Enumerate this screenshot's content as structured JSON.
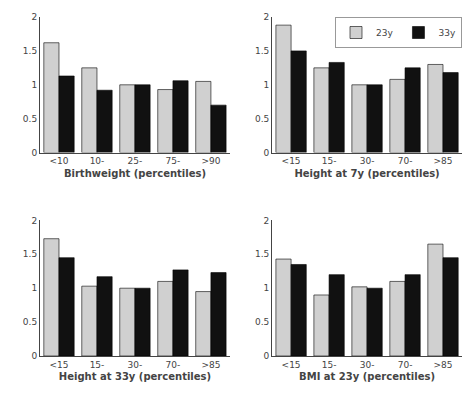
{
  "chart_data": [
    {
      "type": "bar",
      "xlabel": "Birthweight (percentiles)",
      "categories": [
        "<10",
        "10-",
        "25-",
        "75-",
        ">90"
      ],
      "series": [
        {
          "name": "23y",
          "color": "#d0d0d0",
          "values": [
            1.62,
            1.25,
            1.0,
            0.93,
            1.05
          ]
        },
        {
          "name": "33y",
          "color": "#111111",
          "values": [
            1.13,
            0.92,
            1.0,
            1.06,
            0.7
          ]
        }
      ],
      "ylim": [
        0,
        2
      ],
      "yticks": [
        0,
        0.5,
        1,
        1.5,
        2
      ],
      "grid": false
    },
    {
      "type": "bar",
      "xlabel": "Height at 7y (percentiles)",
      "categories": [
        "<15",
        "15-",
        "30-",
        "70-",
        ">85"
      ],
      "series": [
        {
          "name": "23y",
          "color": "#d0d0d0",
          "values": [
            1.88,
            1.25,
            1.0,
            1.08,
            1.3
          ]
        },
        {
          "name": "33y",
          "color": "#111111",
          "values": [
            1.5,
            1.33,
            1.0,
            1.25,
            1.18
          ]
        }
      ],
      "ylim": [
        0,
        2
      ],
      "yticks": [
        0,
        0.5,
        1,
        1.5,
        2
      ],
      "grid": false,
      "legend": "upper right"
    },
    {
      "type": "bar",
      "xlabel": "Height at 33y (percentiles)",
      "categories": [
        "<15",
        "15-",
        "30-",
        "70-",
        ">85"
      ],
      "series": [
        {
          "name": "23y",
          "color": "#d0d0d0",
          "values": [
            1.73,
            1.03,
            1.0,
            1.1,
            0.95
          ]
        },
        {
          "name": "33y",
          "color": "#111111",
          "values": [
            1.45,
            1.17,
            1.0,
            1.27,
            1.23
          ]
        }
      ],
      "ylim": [
        0,
        2
      ],
      "yticks": [
        0,
        0.5,
        1,
        1.5,
        2
      ],
      "grid": false
    },
    {
      "type": "bar",
      "xlabel": "BMI at 23y (percentiles)",
      "categories": [
        "<15",
        "15-",
        "30-",
        "70-",
        ">85"
      ],
      "series": [
        {
          "name": "23y",
          "color": "#d0d0d0",
          "values": [
            1.43,
            0.9,
            1.02,
            1.1,
            1.65
          ]
        },
        {
          "name": "33y",
          "color": "#111111",
          "values": [
            1.35,
            1.2,
            1.0,
            1.2,
            1.45
          ]
        }
      ],
      "ylim": [
        0,
        2
      ],
      "yticks": [
        0,
        0.5,
        1,
        1.5,
        2
      ],
      "grid": false
    }
  ]
}
